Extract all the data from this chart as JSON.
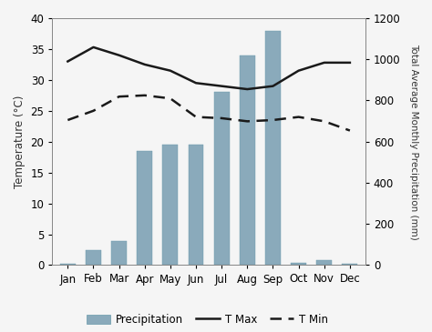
{
  "months": [
    "Jan",
    "Feb",
    "Mar",
    "Apr",
    "May",
    "Jun",
    "Jul",
    "Aug",
    "Sep",
    "Oct",
    "Nov",
    "Dec"
  ],
  "precipitation_mm": [
    5,
    75,
    115,
    555,
    585,
    585,
    840,
    1020,
    1140,
    10,
    25,
    5
  ],
  "t_max": [
    33.0,
    35.3,
    34.0,
    32.5,
    31.5,
    29.5,
    29.0,
    28.5,
    29.0,
    31.5,
    32.8,
    32.8
  ],
  "t_min": [
    23.5,
    25.0,
    27.3,
    27.5,
    27.0,
    24.0,
    23.8,
    23.3,
    23.5,
    24.0,
    23.3,
    21.8
  ],
  "bar_color": "#8aaabb",
  "tmax_color": "#1a1a1a",
  "tmin_color": "#1a1a1a",
  "ylabel_left": "Temperature (°C)",
  "ylabel_right": "Total Average Monthly Precipitation (mm)",
  "ylim_left": [
    0,
    40
  ],
  "ylim_right": [
    0,
    1200
  ],
  "yticks_left": [
    0,
    5,
    10,
    15,
    20,
    25,
    30,
    35,
    40
  ],
  "yticks_right": [
    0,
    200,
    400,
    600,
    800,
    1000,
    1200
  ],
  "legend_labels": [
    "Precipitation",
    "T Max",
    "T Min"
  ],
  "bg_color": "#f5f5f5",
  "figsize": [
    4.74,
    3.65
  ],
  "dpi": 100
}
